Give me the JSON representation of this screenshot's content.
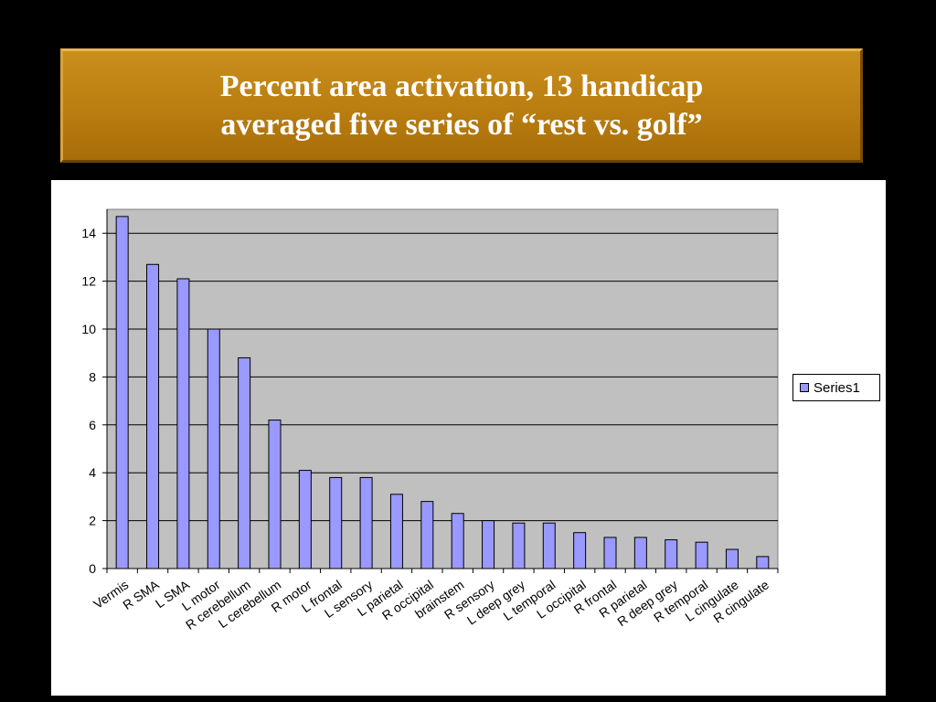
{
  "slide": {
    "title_line1": "Percent area activation, 13 handicap",
    "title_line2": "averaged five series of “rest vs. golf”"
  },
  "chart_data": {
    "type": "bar",
    "categories": [
      "Vermis",
      "R SMA",
      "L SMA",
      "L motor",
      "R cerebellum",
      "L cerebellum",
      "R motor",
      "L frontal",
      "L sensory",
      "L parietal",
      "R occipital",
      "brainstem",
      "R sensory",
      "L deep grey",
      "L temporal",
      "L occipital",
      "R frontal",
      "R parietal",
      "R deep grey",
      "R temporal",
      "L cingulate",
      "R cingulate"
    ],
    "series": [
      {
        "name": "Series1",
        "color": "#9999ff",
        "values": [
          14.7,
          12.7,
          12.1,
          10.0,
          8.8,
          6.2,
          4.1,
          3.8,
          3.8,
          3.1,
          2.8,
          2.3,
          2.0,
          1.9,
          1.9,
          1.5,
          1.3,
          1.3,
          1.2,
          1.1,
          0.8,
          0.5
        ]
      }
    ],
    "yticks": [
      0,
      2,
      4,
      6,
      8,
      10,
      12,
      14
    ],
    "ylim": [
      0,
      15
    ],
    "grid": true,
    "plot_background": "#c0c0c0",
    "legend_position": "right"
  }
}
